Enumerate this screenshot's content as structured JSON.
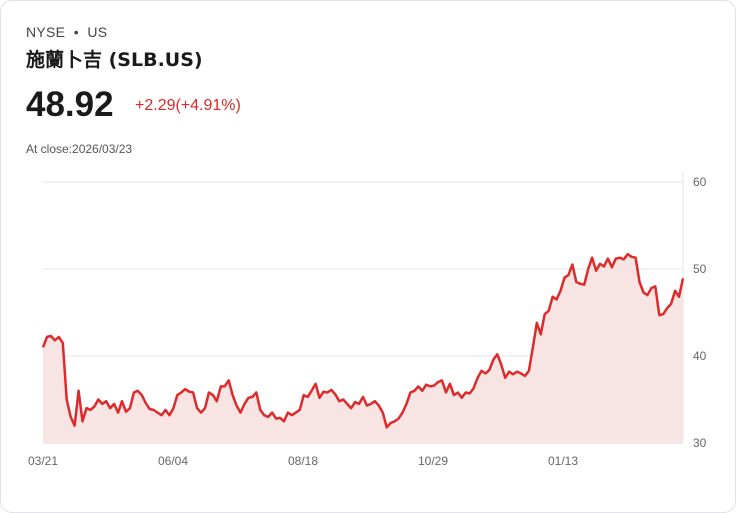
{
  "header": {
    "exchange": "NYSE",
    "separator": "•",
    "market": "US",
    "name": "施蘭卜吉 (SLB.US)",
    "price": "48.92",
    "change": "+2.29(+4.91%)",
    "close_label": "At close:2026/03/23"
  },
  "colors": {
    "line": "#de2a2a",
    "fill": "#f9e4e4",
    "grid": "#e6e6e6"
  },
  "chart_data": {
    "type": "area",
    "title": "",
    "xlabel": "",
    "ylabel": "",
    "x_ticks": [
      "03/21",
      "06/04",
      "08/18",
      "10/29",
      "01/13"
    ],
    "y_ticks": [
      "30",
      "40",
      "50",
      "60"
    ],
    "ylim": [
      30,
      60
    ],
    "grid": true,
    "values": [
      41,
      42.2,
      42.3,
      41.8,
      42.2,
      41.5,
      35,
      33,
      32,
      36,
      32.5,
      34,
      33.8,
      34.2,
      35,
      34.5,
      34.8,
      34,
      34.5,
      33.5,
      34.8,
      33.6,
      34,
      35.8,
      36,
      35.5,
      34.6,
      33.9,
      33.8,
      33.5,
      33.2,
      33.8,
      33.2,
      34,
      35.5,
      35.8,
      36.2,
      35.9,
      35.8,
      34,
      33.5,
      34,
      35.8,
      35.5,
      34.8,
      36.5,
      36.5,
      37.2,
      35.5,
      34.3,
      33.5,
      34.5,
      35.2,
      35.3,
      35.8,
      33.8,
      33.2,
      33,
      33.5,
      32.8,
      32.9,
      32.5,
      33.5,
      33.2,
      33.5,
      33.8,
      35.5,
      35.3,
      36,
      36.8,
      35.2,
      35.9,
      35.8,
      36.1,
      35.6,
      34.8,
      35,
      34.5,
      34,
      34.7,
      34.5,
      35.3,
      34.3,
      34.5,
      34.8,
      34.3,
      33.5,
      31.8,
      32.3,
      32.5,
      32.8,
      33.5,
      34.5,
      35.8,
      36,
      36.5,
      36,
      36.7,
      36.5,
      36.6,
      37,
      37.2,
      35.8,
      36.8,
      35.5,
      35.8,
      35.2,
      35.8,
      35.7,
      36.3,
      37.5,
      38.3,
      38,
      38.4,
      39.6,
      40.2,
      39,
      37.5,
      38.2,
      37.9,
      38.2,
      38,
      37.7,
      38.3,
      41,
      43.8,
      42.5,
      44.8,
      45.2,
      46.8,
      46.5,
      47.5,
      49,
      49.3,
      50.5,
      48.5,
      48.3,
      48.2,
      50,
      51.3,
      49.8,
      50.6,
      50.3,
      51.2,
      50.2,
      51.2,
      51.3,
      51.1,
      51.7,
      51.4,
      51.3,
      48.5,
      47.3,
      47,
      47.8,
      48,
      44.7,
      44.8,
      45.5,
      46,
      47.5,
      46.8,
      48.92
    ]
  }
}
